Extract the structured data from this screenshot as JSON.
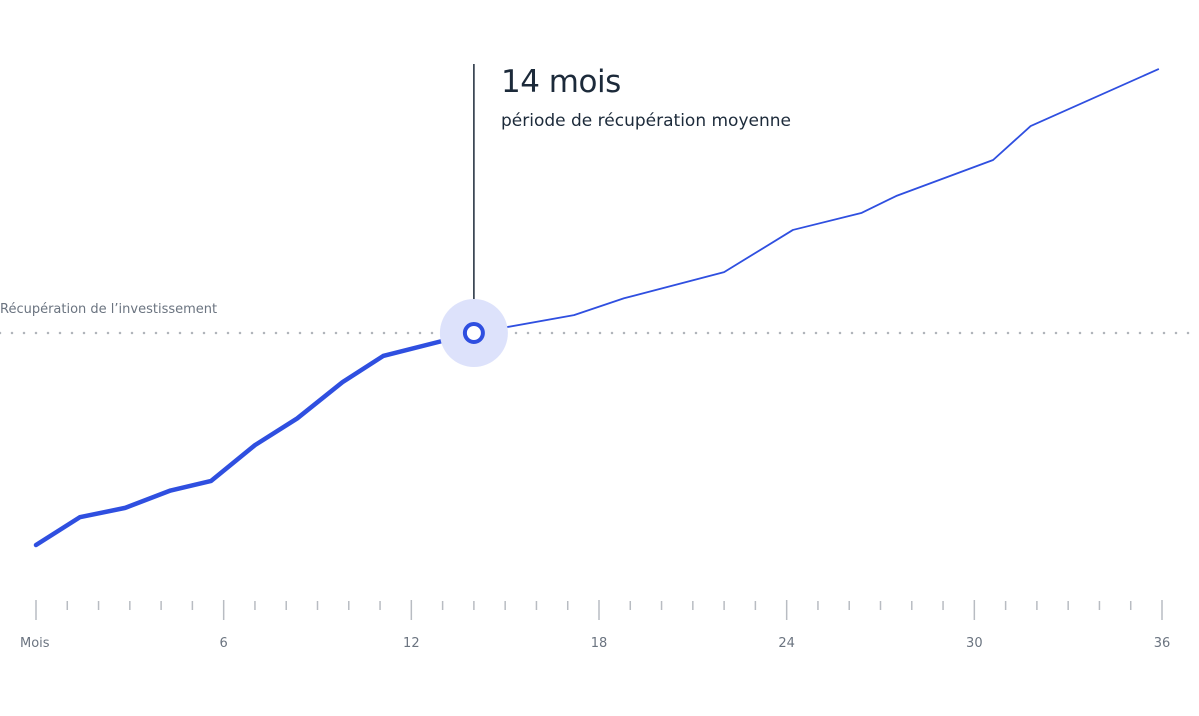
{
  "chart_data": {
    "type": "line",
    "title": "",
    "xlabel": "Mois",
    "ylabel": "",
    "xlim": [
      0,
      36
    ],
    "ylim": [
      0,
      200
    ],
    "x_ticks": [
      0,
      6,
      12,
      18,
      24,
      30,
      36
    ],
    "x_tick_labels": [
      "Mois",
      "6",
      "12",
      "18",
      "24",
      "30",
      "36"
    ],
    "minor_tick_step": 1,
    "grid": false,
    "series": [
      {
        "x": [
          0,
          1.4,
          2.85,
          4.3,
          5.6,
          7,
          8.35,
          9.8,
          11.1,
          14,
          17.2,
          18.8,
          22,
          24.2,
          26.4,
          27.5,
          30.6,
          31.8,
          35.9
        ],
        "y": [
          20.6,
          31,
          34.5,
          41,
          44.6,
          58,
          68,
          81.6,
          91.4,
          100,
          106.7,
          113,
          122.8,
          138.6,
          145,
          151.3,
          164.8,
          177.5,
          198.9
        ]
      }
    ],
    "reference_line": {
      "y": 100,
      "label": "Récupération de l’investissement",
      "style": "dotted"
    },
    "annotation": {
      "x": 14,
      "y": 100,
      "title": "14 mois",
      "subtitle": "période de récupération moyenne"
    },
    "colors": {
      "line": "#2f4fe0",
      "highlight_halo": "#dde2fb",
      "text": "#1c2a3a",
      "axis": "#b8bcc2",
      "reference": "#b0b4ba",
      "tick_label": "#6b7480"
    }
  }
}
